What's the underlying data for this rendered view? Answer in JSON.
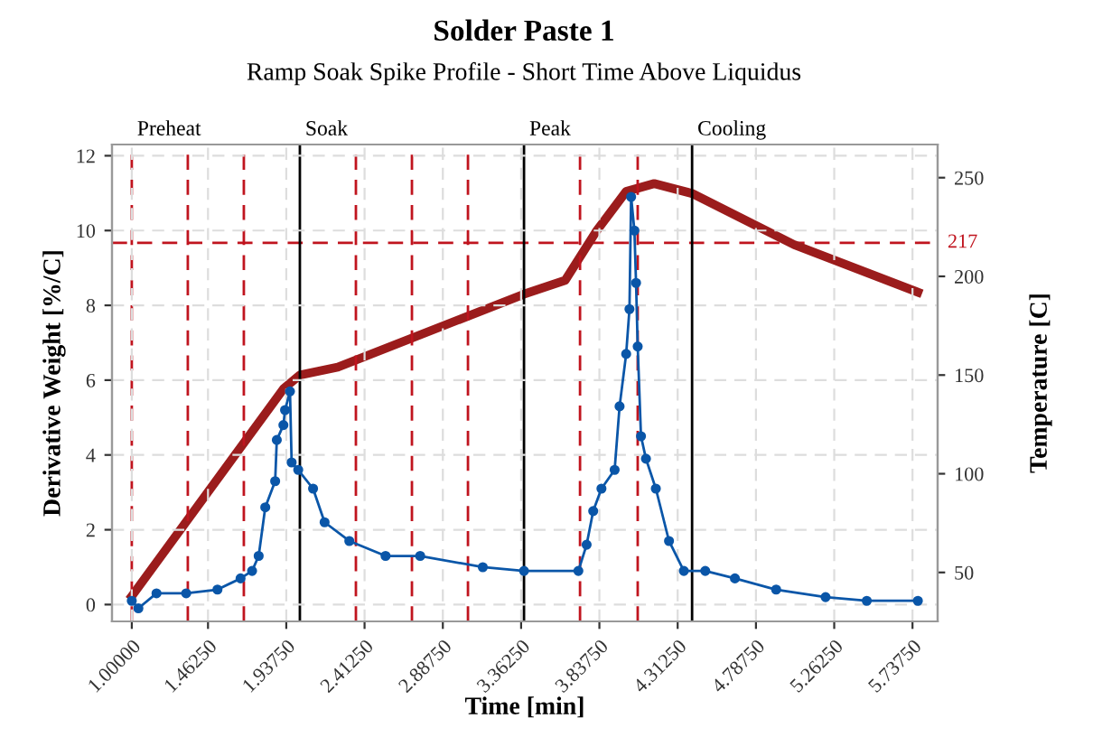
{
  "chart_data": {
    "type": "line",
    "title": "Solder Paste 1",
    "subtitle": "Ramp Soak Spike Profile - Short Time Above Liquidus",
    "xlabel": "Time [min]",
    "ylabel": "Derivative Weight [%/C]",
    "y2label": "Temperature [C]",
    "xlim": [
      0.88,
      5.89
    ],
    "ylim": [
      -0.45,
      12.3
    ],
    "y2lim": [
      25.2,
      266.8
    ],
    "xticks": [
      {
        "value": 1.0,
        "label": "1.00000"
      },
      {
        "value": 1.4625,
        "label": "1.46250"
      },
      {
        "value": 1.9375,
        "label": "1.93750"
      },
      {
        "value": 2.4125,
        "label": "2.41250"
      },
      {
        "value": 2.8875,
        "label": "2.88750"
      },
      {
        "value": 3.3625,
        "label": "3.36250"
      },
      {
        "value": 3.8375,
        "label": "3.83750"
      },
      {
        "value": 4.3125,
        "label": "4.31250"
      },
      {
        "value": 4.7875,
        "label": "4.78750"
      },
      {
        "value": 5.2625,
        "label": "5.26250"
      },
      {
        "value": 5.7375,
        "label": "5.73750"
      }
    ],
    "yticks": [
      0,
      2,
      4,
      6,
      8,
      10,
      12
    ],
    "y2ticks": [
      50,
      100,
      150,
      200,
      250
    ],
    "grid": true,
    "series": [
      {
        "color": "#9b1c1c",
        "axis": "y2",
        "marker": "none",
        "line_style": "solid",
        "x": [
          1.0,
          1.92,
          2.02,
          2.25,
          3.38,
          3.63,
          3.82,
          4.0,
          4.17,
          4.4,
          5.02,
          5.77
        ],
        "values": [
          38,
          143,
          150,
          154,
          191,
          198,
          223,
          243,
          247,
          242,
          216,
          192
        ]
      },
      {
        "color": "#0a56a8",
        "axis": "y",
        "marker": "circle",
        "line_style": "solid",
        "x": [
          1.0,
          1.04,
          1.15,
          1.33,
          1.52,
          1.66,
          1.73,
          1.77,
          1.81,
          1.87,
          1.88,
          1.92,
          1.93,
          1.96,
          1.97,
          2.01,
          2.1,
          2.17,
          2.32,
          2.54,
          2.75,
          3.13,
          3.38,
          3.71,
          3.76,
          3.8,
          3.85,
          3.93,
          3.96,
          4.0,
          4.02,
          4.03,
          4.05,
          4.06,
          4.07,
          4.09,
          4.12,
          4.18,
          4.26,
          4.35,
          4.48,
          4.66,
          4.91,
          5.21,
          5.46,
          5.77
        ],
        "values": [
          0.1,
          -0.1,
          0.3,
          0.3,
          0.4,
          0.7,
          0.9,
          1.3,
          2.6,
          3.3,
          4.4,
          4.8,
          5.2,
          5.7,
          3.8,
          3.6,
          3.1,
          2.2,
          1.7,
          1.3,
          1.3,
          1.0,
          0.9,
          0.9,
          1.6,
          2.5,
          3.1,
          3.6,
          5.3,
          6.7,
          7.9,
          10.9,
          10.0,
          8.6,
          6.9,
          4.5,
          3.9,
          3.1,
          1.7,
          0.9,
          0.9,
          0.7,
          0.4,
          0.2,
          0.1,
          0.1
        ]
      }
    ],
    "ref_lines": [
      {
        "axis": "x",
        "value": 1.0,
        "label": "Preheat",
        "color": "#c0141e",
        "line_style": "dashed"
      },
      {
        "axis": "x",
        "value": 1.34,
        "color": "#c0141e",
        "line_style": "dashed"
      },
      {
        "axis": "x",
        "value": 1.68,
        "color": "#c0141e",
        "line_style": "dashed"
      },
      {
        "axis": "x",
        "value": 2.02,
        "label": "Soak",
        "color": "#000000",
        "line_style": "solid"
      },
      {
        "axis": "x",
        "value": 2.36,
        "color": "#c0141e",
        "line_style": "dashed"
      },
      {
        "axis": "x",
        "value": 2.7,
        "color": "#c0141e",
        "line_style": "dashed"
      },
      {
        "axis": "x",
        "value": 3.04,
        "color": "#c0141e",
        "line_style": "dashed"
      },
      {
        "axis": "x",
        "value": 3.38,
        "label": "Peak",
        "color": "#000000",
        "line_style": "solid"
      },
      {
        "axis": "x",
        "value": 3.72,
        "color": "#c0141e",
        "line_style": "dashed"
      },
      {
        "axis": "x",
        "value": 4.07,
        "color": "#c0141e",
        "line_style": "dashed"
      },
      {
        "axis": "x",
        "value": 4.4,
        "label": "Cooling",
        "color": "#000000",
        "line_style": "solid"
      },
      {
        "axis": "y2",
        "value": 217,
        "label": "217",
        "color": "#c0141e",
        "line_style": "dashed"
      }
    ]
  }
}
